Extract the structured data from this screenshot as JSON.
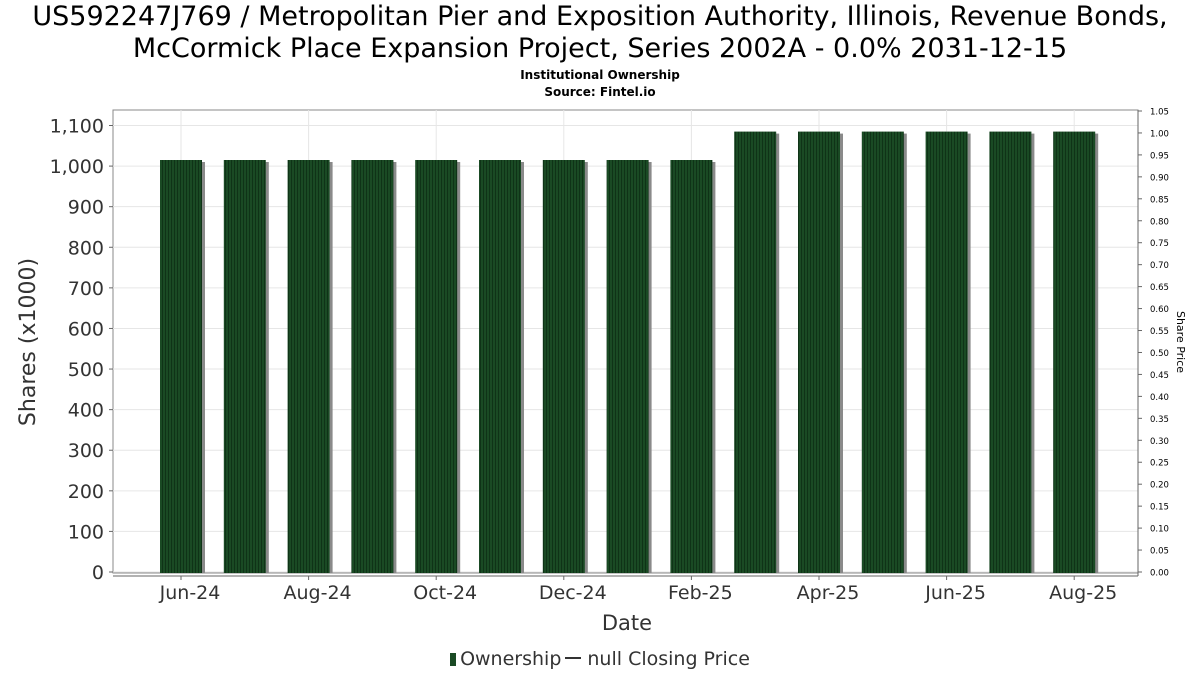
{
  "chart_data": {
    "type": "bar",
    "title_line1": "US592247J769 / Metropolitan Pier and Exposition Authority, Illinois, Revenue Bonds,",
    "title_line2": "McCormick Place Expansion Project, Series 2002A - 0.0% 2031-12-15",
    "subtitle": "Institutional Ownership",
    "source": "Source: Fintel.io",
    "xlabel": "Date",
    "ylabel": "Shares (x1000)",
    "y2label": "Share Price",
    "categories": [
      "2024-06",
      "2024-07",
      "2024-08",
      "2024-09",
      "2024-10",
      "2024-11",
      "2024-12",
      "2025-01",
      "2025-02",
      "2025-03",
      "2025-04",
      "2025-05",
      "2025-06",
      "2025-07",
      "2025-08"
    ],
    "series": [
      {
        "name": "Ownership",
        "values": [
          1015,
          1015,
          1015,
          1015,
          1015,
          1015,
          1015,
          1015,
          1015,
          1085,
          1085,
          1085,
          1085,
          1085,
          1085
        ],
        "color": "#1a4a24"
      }
    ],
    "x_tick_labels": [
      "Jun-24",
      "Aug-24",
      "Oct-24",
      "Dec-24",
      "Feb-25",
      "Apr-25",
      "Jun-25",
      "Aug-25"
    ],
    "y_ticks": [
      "0",
      "100",
      "200",
      "300",
      "400",
      "500",
      "600",
      "700",
      "800",
      "900",
      "1,000",
      "1,100"
    ],
    "y_range": [
      0,
      1100
    ],
    "y2_ticks": [
      "0.00",
      "0.05",
      "0.10",
      "0.15",
      "0.20",
      "0.25",
      "0.30",
      "0.35",
      "0.40",
      "0.45",
      "0.50",
      "0.55",
      "0.60",
      "0.65",
      "0.70",
      "0.75",
      "0.80",
      "0.85",
      "0.90",
      "0.95",
      "1.00",
      "1.05"
    ],
    "y2_range": [
      0,
      1.05
    ],
    "grid": true,
    "legend_position": "bottom",
    "legend": {
      "ownership_label": "Ownership",
      "price_label": "null Closing Price"
    }
  }
}
